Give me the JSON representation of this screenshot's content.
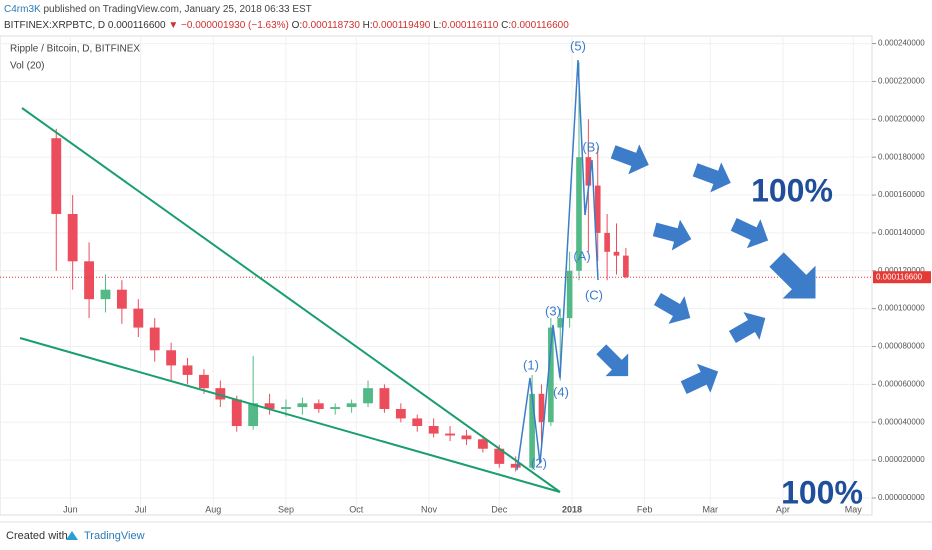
{
  "header": {
    "author": "C4rm3K",
    "published": "published on TradingView.com, January 25, 2018 06:33 EST",
    "symbol": "BITFINEX:XRPBTC, D",
    "price": "0.000116600",
    "change": "▼ −0.000001930 (−1.63%)",
    "ohlc": [
      {
        "label": "O:",
        "value": "0.000118730"
      },
      {
        "label": "H:",
        "value": "0.000119490"
      },
      {
        "label": "L:",
        "value": "0.000116110"
      },
      {
        "label": "C:",
        "value": "0.000116600"
      }
    ]
  },
  "chart_data": {
    "type": "candlestick",
    "title": "Ripple / Bitcoin, D, BITFINEX",
    "subtitle": "Vol (20)",
    "up_color": "#53b987",
    "down_color": "#eb4d5c",
    "x": [
      25,
      32,
      39,
      46,
      53,
      60,
      67,
      74,
      81,
      88,
      95,
      102,
      109,
      116,
      123,
      130,
      137,
      144,
      151,
      158,
      165,
      172,
      179,
      186,
      193,
      200,
      207,
      214,
      221,
      228,
      232,
      236,
      240,
      244,
      248,
      252,
      256,
      260,
      264,
      268
    ],
    "open": [
      0.00019,
      0.00015,
      0.000125,
      0.000105,
      0.00011,
      0.0001,
      9e-05,
      7.8e-05,
      7e-05,
      6.5e-05,
      5.8e-05,
      5.2e-05,
      3.8e-05,
      5e-05,
      4.7e-05,
      4.8e-05,
      5e-05,
      4.7e-05,
      4.8e-05,
      5e-05,
      5.8e-05,
      4.7e-05,
      4.2e-05,
      3.8e-05,
      3.4e-05,
      3.3e-05,
      3.1e-05,
      2.6e-05,
      1.8e-05,
      1.6e-05,
      5.5e-05,
      4e-05,
      9e-05,
      9.5e-05,
      0.00012,
      0.00018,
      0.000165,
      0.00014,
      0.00013,
      0.000128
    ],
    "high": [
      0.000195,
      0.00016,
      0.000135,
      0.000118,
      0.000115,
      0.000105,
      9.5e-05,
      8.2e-05,
      7.4e-05,
      6.8e-05,
      6.2e-05,
      5.4e-05,
      7.5e-05,
      5.5e-05,
      5.2e-05,
      5.3e-05,
      5.2e-05,
      5e-05,
      5.2e-05,
      6.2e-05,
      6e-05,
      5e-05,
      4.4e-05,
      4.2e-05,
      3.8e-05,
      3.6e-05,
      3.3e-05,
      2.8e-05,
      2.2e-05,
      6.5e-05,
      6e-05,
      9.5e-05,
      0.0001,
      0.00013,
      0.00023,
      0.0002,
      0.000185,
      0.00015,
      0.000145,
      0.000132
    ],
    "low": [
      0.00012,
      0.00011,
      9.5e-05,
      9.8e-05,
      9.2e-05,
      8.5e-05,
      7.2e-05,
      6.2e-05,
      6e-05,
      5.5e-05,
      4.8e-05,
      3.5e-05,
      3.6e-05,
      4.4e-05,
      4.3e-05,
      4.4e-05,
      4.5e-05,
      4.4e-05,
      4.5e-05,
      4.8e-05,
      4.5e-05,
      4e-05,
      3.5e-05,
      3.2e-05,
      3e-05,
      2.8e-05,
      2.4e-05,
      1.6e-05,
      1.4e-05,
      1.5e-05,
      2.8e-05,
      3.8e-05,
      6.2e-05,
      9e-05,
      0.000115,
      0.00013,
      0.000125,
      0.000115,
      0.000118,
      0.000116
    ],
    "close": [
      0.00015,
      0.000125,
      0.000105,
      0.00011,
      0.0001,
      9e-05,
      7.8e-05,
      7e-05,
      6.5e-05,
      5.8e-05,
      5.2e-05,
      3.8e-05,
      5e-05,
      4.7e-05,
      4.8e-05,
      5e-05,
      4.7e-05,
      4.8e-05,
      5e-05,
      5.8e-05,
      4.7e-05,
      4.2e-05,
      3.8e-05,
      3.4e-05,
      3.3e-05,
      3.1e-05,
      2.6e-05,
      1.8e-05,
      1.6e-05,
      5.5e-05,
      4e-05,
      9e-05,
      9.5e-05,
      0.00012,
      0.00018,
      0.000165,
      0.00014,
      0.00013,
      0.000128,
      0.0001166
    ],
    "last_price": {
      "value": 0.0001166,
      "label": "0.000116600"
    },
    "xlim": [
      1,
      373
    ],
    "xticks": [
      {
        "value": 31,
        "label": "Jun"
      },
      {
        "value": 61,
        "label": "Jul"
      },
      {
        "value": 92,
        "label": "Aug"
      },
      {
        "value": 123,
        "label": "Sep"
      },
      {
        "value": 153,
        "label": "Oct"
      },
      {
        "value": 184,
        "label": "Nov"
      },
      {
        "value": 214,
        "label": "Dec"
      },
      {
        "value": 245,
        "label": "2018"
      },
      {
        "value": 276,
        "label": "Feb"
      },
      {
        "value": 304,
        "label": "Mar"
      },
      {
        "value": 335,
        "label": "Apr"
      },
      {
        "value": 365,
        "label": "May"
      }
    ],
    "ylim": [
      -9e-06,
      0.000244
    ],
    "yticks": [
      {
        "value": 0,
        "label": "0.000000000"
      },
      {
        "value": 2e-05,
        "label": "0.000020000"
      },
      {
        "value": 4e-05,
        "label": "0.000040000"
      },
      {
        "value": 6e-05,
        "label": "0.000060000"
      },
      {
        "value": 8e-05,
        "label": "0.000080000"
      },
      {
        "value": 0.0001,
        "label": "0.000100000"
      },
      {
        "value": 0.00012,
        "label": "0.000120000"
      },
      {
        "value": 0.00014,
        "label": "0.000140000"
      },
      {
        "value": 0.00016,
        "label": "0.000160000"
      },
      {
        "value": 0.00018,
        "label": "0.000180000"
      },
      {
        "value": 0.0002,
        "label": "0.000200000"
      },
      {
        "value": 0.00022,
        "label": "0.000220000"
      },
      {
        "value": 0.00024,
        "label": "0.000240000"
      }
    ],
    "grid": true,
    "annotations": [
      "(1)",
      "(2)",
      "(3)",
      "(4)",
      "(5)",
      "(A)",
      "(B)",
      "(C)",
      "100%",
      "100%"
    ]
  },
  "footer": {
    "created": "Created with",
    "brand": "TradingView"
  }
}
